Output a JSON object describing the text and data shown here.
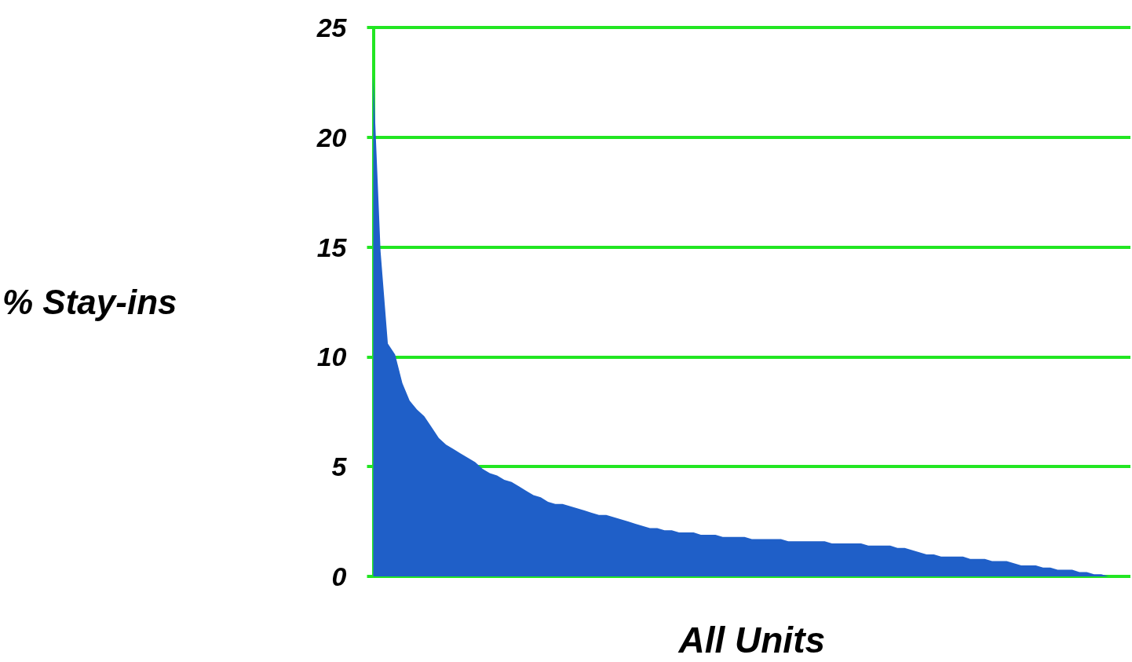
{
  "chart_data": {
    "type": "area",
    "xlabel": "All Units",
    "ylabel": "% Stay-ins",
    "categories": [
      null,
      null,
      null,
      null,
      null,
      null,
      null,
      null,
      null,
      null,
      null,
      null,
      null,
      null,
      null,
      null,
      null,
      null,
      null,
      null,
      null,
      null,
      null,
      null,
      null,
      null,
      null,
      null,
      null,
      null,
      null,
      null,
      null,
      null,
      null,
      null,
      null,
      null,
      null,
      null,
      null,
      null,
      null,
      null,
      null,
      null,
      null,
      null,
      null,
      null,
      null,
      null,
      null,
      null,
      null,
      null,
      null,
      null,
      null,
      null,
      null,
      null,
      null,
      null,
      null,
      null,
      null,
      null,
      null,
      null,
      null,
      null,
      null,
      null,
      null,
      null,
      null,
      null,
      null,
      null,
      null,
      null,
      null,
      null,
      null,
      null,
      null,
      null,
      null,
      null,
      null,
      null,
      null,
      null,
      null,
      null,
      null,
      null,
      null,
      null,
      null,
      null,
      null,
      null,
      null
    ],
    "series": [
      {
        "color": "#1f5fc8",
        "values": [
          22.8,
          14.8,
          10.6,
          10.1,
          8.8,
          8.0,
          7.6,
          7.3,
          6.8,
          6.3,
          6.0,
          5.8,
          5.6,
          5.4,
          5.2,
          4.9,
          4.7,
          4.6,
          4.4,
          4.3,
          4.1,
          3.9,
          3.7,
          3.6,
          3.4,
          3.3,
          3.3,
          3.2,
          3.1,
          3.0,
          2.9,
          2.8,
          2.8,
          2.7,
          2.6,
          2.5,
          2.4,
          2.3,
          2.2,
          2.2,
          2.1,
          2.1,
          2.0,
          2.0,
          2.0,
          1.9,
          1.9,
          1.9,
          1.8,
          1.8,
          1.8,
          1.8,
          1.7,
          1.7,
          1.7,
          1.7,
          1.7,
          1.6,
          1.6,
          1.6,
          1.6,
          1.6,
          1.6,
          1.5,
          1.5,
          1.5,
          1.5,
          1.5,
          1.4,
          1.4,
          1.4,
          1.4,
          1.3,
          1.3,
          1.2,
          1.1,
          1.0,
          1.0,
          0.9,
          0.9,
          0.9,
          0.9,
          0.8,
          0.8,
          0.8,
          0.7,
          0.7,
          0.7,
          0.6,
          0.5,
          0.5,
          0.5,
          0.4,
          0.4,
          0.3,
          0.3,
          0.3,
          0.2,
          0.2,
          0.1,
          0.1,
          0,
          0,
          0,
          0
        ]
      }
    ],
    "ylim": [
      0,
      25
    ],
    "yticks": [
      0,
      5,
      10,
      15,
      20,
      25
    ],
    "grid": "y",
    "tick_labels": "y",
    "marker": "none"
  }
}
